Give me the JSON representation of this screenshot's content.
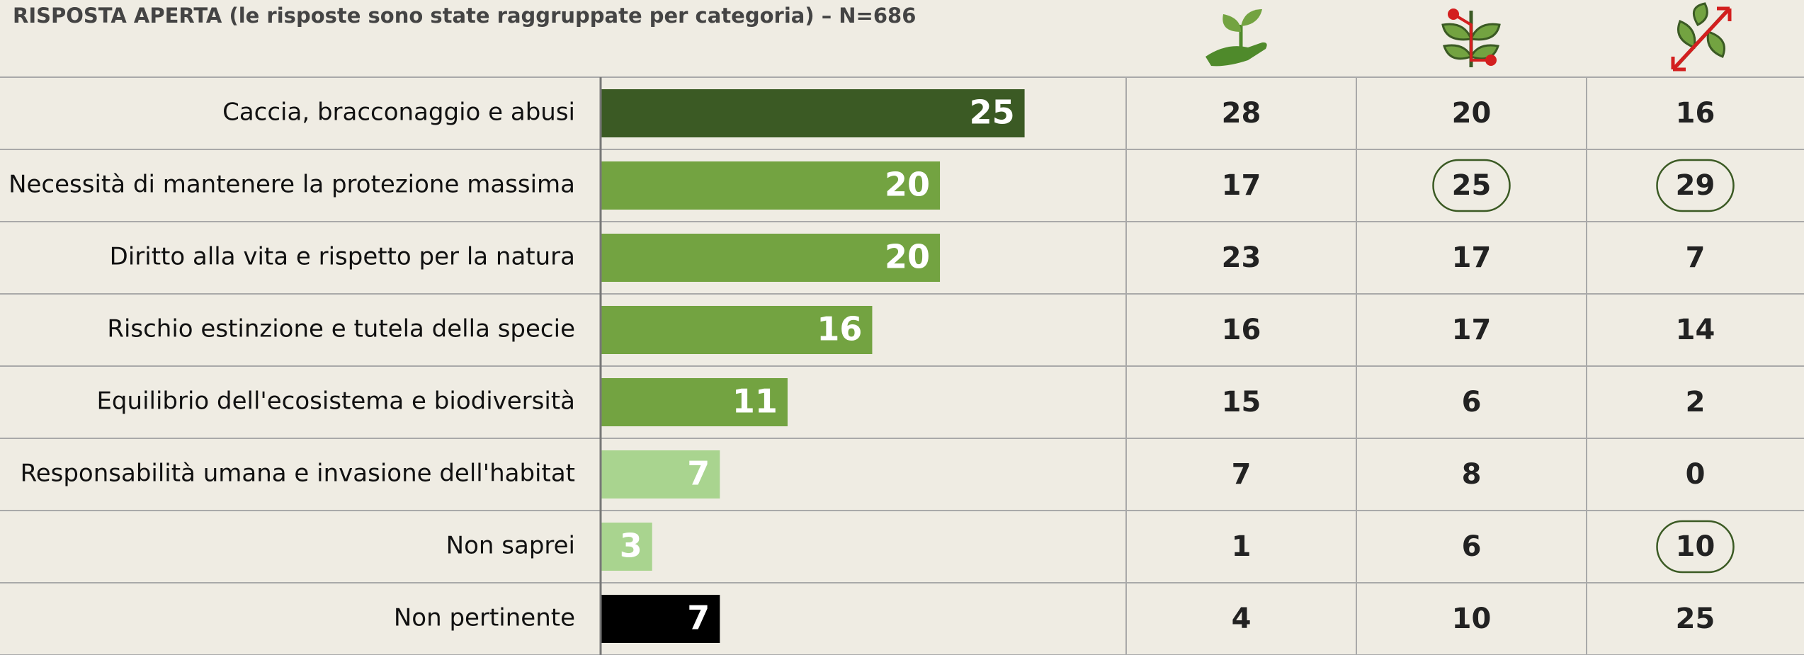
{
  "chart_data": {
    "type": "bar",
    "title": "RISPOSTA APERTA (le risposte sono state raggruppate per categoria) – N=686",
    "categories": [
      "Caccia, bracconaggio e abusi",
      "Necessità di mantenere la protezione massima",
      "Diritto alla vita e rispetto per la natura",
      "Rischio estinzione e tutela della specie",
      "Equilibrio dell'ecosistema e biodiversità",
      "Responsabilità umana e invasione dell'habitat",
      "Non saprei",
      "Non pertinente"
    ],
    "values": [
      25,
      20,
      20,
      16,
      11,
      7,
      3,
      7
    ],
    "colors": [
      "#3b5a24",
      "#73a341",
      "#73a341",
      "#73a341",
      "#73a341",
      "#a9d48f",
      "#a9d48f",
      "#000000"
    ],
    "xlim": [
      0,
      31
    ],
    "columns": [
      {
        "values": [
          28,
          17,
          23,
          16,
          15,
          7,
          1,
          4
        ]
      },
      {
        "values": [
          20,
          25,
          17,
          17,
          6,
          8,
          6,
          10
        ]
      },
      {
        "values": [
          16,
          29,
          7,
          14,
          2,
          0,
          10,
          25
        ]
      }
    ],
    "circled": [
      [
        1,
        1
      ],
      [
        2,
        1
      ],
      [
        2,
        6
      ]
    ]
  }
}
